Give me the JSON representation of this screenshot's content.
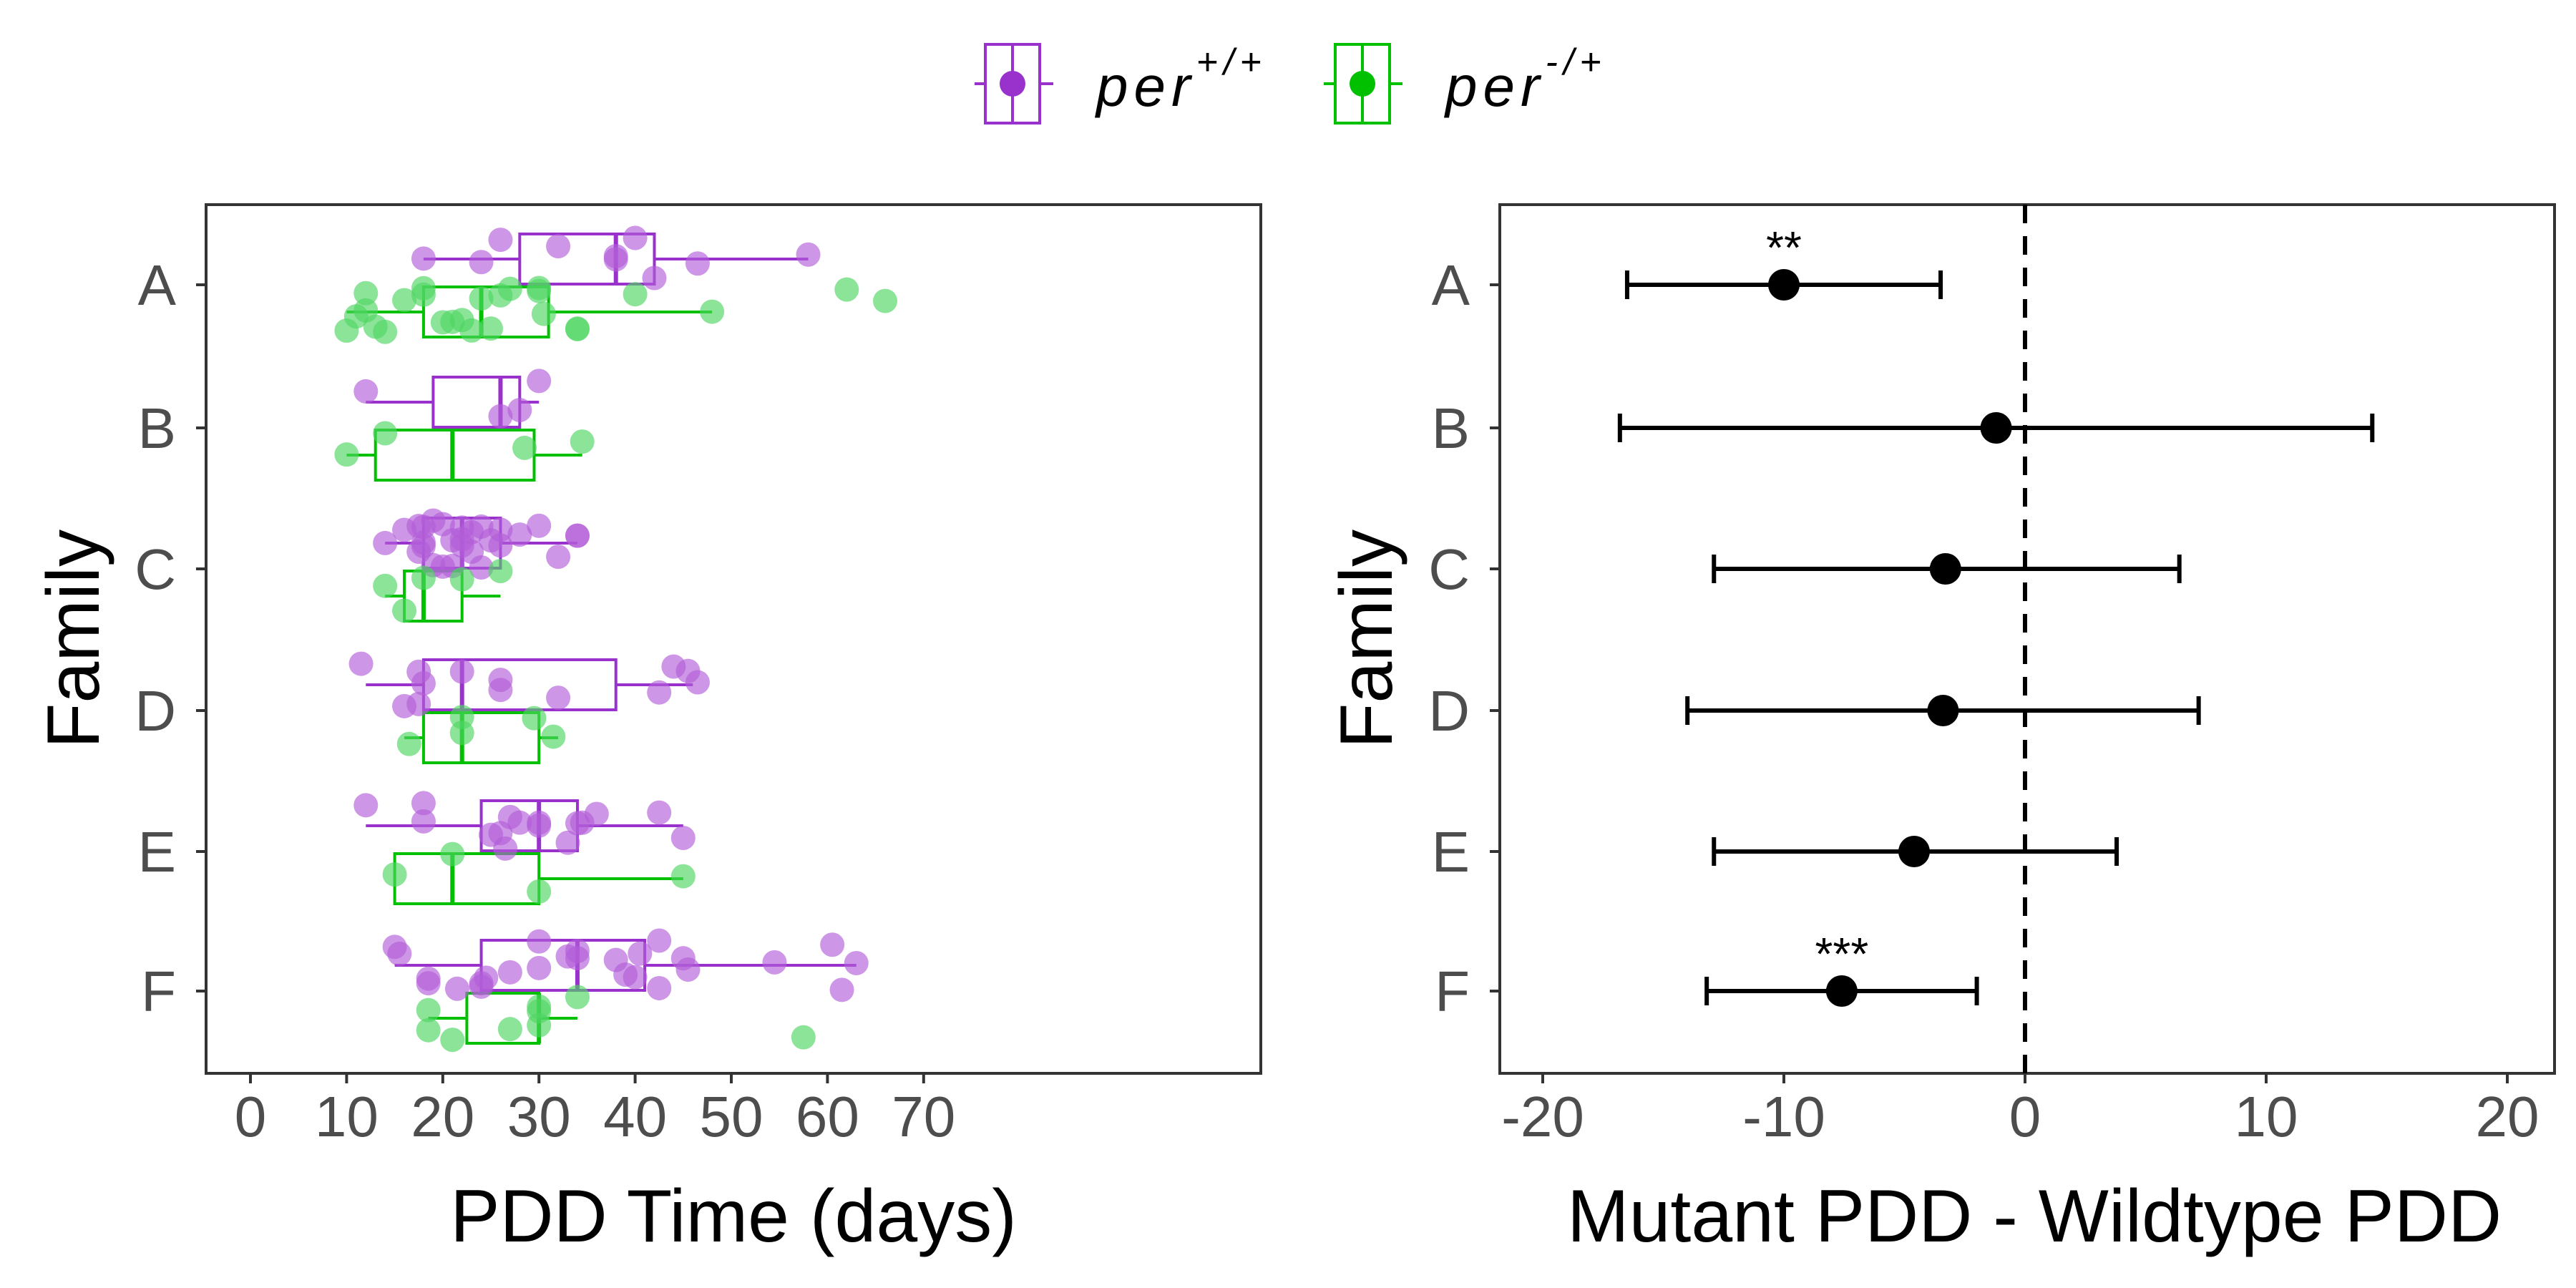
{
  "colors": {
    "wildtype": "#9932CC",
    "mutant": "#00C000",
    "point_wildtype": "#B25ED8",
    "point_mutant": "#4ED662"
  },
  "legend": {
    "items": [
      {
        "name": "per",
        "sup": "+/+",
        "color": "#9932CC"
      },
      {
        "name": "per",
        "sup": "-/+",
        "color": "#00C000"
      }
    ]
  },
  "chart_data": [
    {
      "type": "boxplot",
      "xlabel": "PDD Time (days)",
      "ylabel": "Family",
      "xlim": [
        -3,
        73.5
      ],
      "x_ticks": [
        0,
        10,
        20,
        30,
        40,
        50,
        60,
        70
      ],
      "categories": [
        "A",
        "B",
        "C",
        "D",
        "E",
        "F"
      ],
      "series": [
        {
          "name": "per+/+",
          "boxes": [
            {
              "family": "A",
              "min": 18,
              "q1": 28,
              "median": 38,
              "q3": 42,
              "max": 58
            },
            {
              "family": "B",
              "min": 12,
              "q1": 19,
              "median": 26,
              "q3": 28,
              "max": 30
            },
            {
              "family": "C",
              "min": 14,
              "q1": 18,
              "median": 22,
              "q3": 26,
              "max": 34
            },
            {
              "family": "D",
              "min": 12,
              "q1": 18,
              "median": 22,
              "q3": 38,
              "max": 46
            },
            {
              "family": "E",
              "min": 12,
              "q1": 24,
              "median": 30,
              "q3": 34,
              "max": 45
            },
            {
              "family": "F",
              "min": 15,
              "q1": 24,
              "median": 34,
              "q3": 41,
              "max": 63
            }
          ],
          "points": [
            {
              "family": "A",
              "x": [
                18,
                24,
                26,
                32,
                38,
                38,
                40,
                42,
                46.5,
                58
              ]
            },
            {
              "family": "B",
              "x": [
                12,
                26,
                28,
                30
              ]
            },
            {
              "family": "C",
              "x": [
                14,
                16,
                17.5,
                17.5,
                18,
                18,
                18,
                19,
                19,
                20,
                20,
                21,
                21,
                22,
                22,
                22,
                23,
                23,
                24,
                24,
                25,
                26,
                26,
                28,
                30,
                32,
                34,
                34
              ]
            },
            {
              "family": "D",
              "x": [
                11.5,
                16,
                17.5,
                17.5,
                18,
                22,
                26,
                26,
                32,
                42.5,
                44,
                45.5,
                46.5
              ]
            },
            {
              "family": "E",
              "x": [
                12,
                18,
                18,
                25,
                26,
                26.5,
                27,
                28,
                30,
                30,
                33,
                34,
                34.5,
                36,
                42.5,
                45
              ]
            },
            {
              "family": "F",
              "x": [
                15,
                15.5,
                18.5,
                18.5,
                21.5,
                24,
                24,
                24.5,
                27,
                30,
                30,
                33,
                34,
                34,
                38,
                39,
                40,
                40.5,
                42.5,
                42.5,
                45,
                45.5,
                54.5,
                60.5,
                61.5,
                63
              ]
            }
          ]
        },
        {
          "name": "per-/+",
          "boxes": [
            {
              "family": "A",
              "min": 10,
              "q1": 18,
              "median": 24,
              "q3": 31,
              "max": 48
            },
            {
              "family": "B",
              "min": 10,
              "q1": 13,
              "median": 21,
              "q3": 29.5,
              "max": 34.5
            },
            {
              "family": "C",
              "min": 14,
              "q1": 16,
              "median": 18,
              "q3": 22,
              "max": 26
            },
            {
              "family": "D",
              "min": 16,
              "q1": 18,
              "median": 22,
              "q3": 30,
              "max": 32
            },
            {
              "family": "E",
              "min": 15,
              "q1": 15,
              "median": 21,
              "q3": 30,
              "max": 45
            }
          ],
          "points": [
            {
              "family": "A",
              "x": [
                10,
                11,
                12,
                12,
                13,
                14,
                16,
                18,
                18,
                20,
                21,
                22,
                23,
                24,
                25,
                26,
                27,
                30,
                30,
                30.5,
                34,
                34,
                40,
                48,
                62,
                66
              ]
            },
            {
              "family": "B",
              "x": [
                10,
                14,
                28.5,
                34.5
              ]
            },
            {
              "family": "C",
              "x": [
                14,
                16,
                18,
                22,
                26
              ]
            },
            {
              "family": "D",
              "x": [
                16.5,
                22,
                22,
                29.5,
                31.5
              ]
            },
            {
              "family": "E",
              "x": [
                15,
                21,
                30,
                45
              ]
            },
            {
              "family": "F",
              "x": [
                18.5,
                18.5,
                21,
                27,
                30,
                30,
                30,
                34,
                57.5
              ]
            }
          ]
        }
      ],
      "extra_box": {
        "family": "F",
        "series": "per-/+",
        "min": 18.5,
        "q1": 22.5,
        "median": 30,
        "q3": 30,
        "max": 34
      }
    },
    {
      "type": "errorbar",
      "xlabel": "Mutant PDD - Wildtype PDD",
      "ylabel": "Family",
      "xlim": [
        -22,
        22
      ],
      "x_ticks": [
        -20,
        -10,
        0,
        10,
        20
      ],
      "x_tick_labels": [
        "-20",
        "-10",
        "0",
        "10",
        "20"
      ],
      "categories": [
        "A",
        "B",
        "C",
        "D",
        "E",
        "F"
      ],
      "points": [
        {
          "family": "A",
          "estimate": -10,
          "lower": -16.5,
          "upper": -3.5,
          "significance": "**"
        },
        {
          "family": "B",
          "estimate": -1.2,
          "lower": -16.8,
          "upper": 14.4,
          "significance": ""
        },
        {
          "family": "C",
          "estimate": -3.3,
          "lower": -12.9,
          "upper": 6.4,
          "significance": ""
        },
        {
          "family": "D",
          "estimate": -3.4,
          "lower": -14,
          "upper": 7.2,
          "significance": ""
        },
        {
          "family": "E",
          "estimate": -4.6,
          "lower": -12.9,
          "upper": 3.8,
          "significance": ""
        },
        {
          "family": "F",
          "estimate": -7.6,
          "lower": -13.2,
          "upper": -2,
          "significance": "***"
        }
      ],
      "reference_line": 0
    }
  ]
}
